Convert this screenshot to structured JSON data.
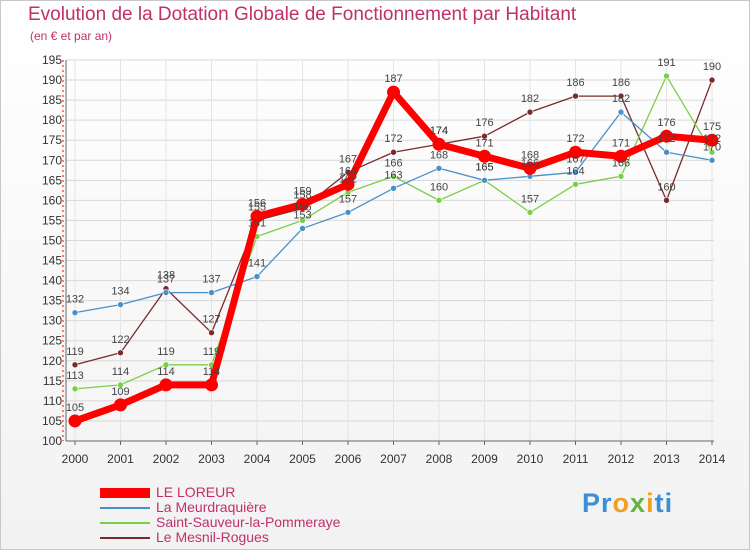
{
  "brand": {
    "logo_text": "Proxiti",
    "colors": {
      "accent": "#c0306a"
    }
  },
  "chart_data": {
    "type": "line",
    "title": "Evolution de la Dotation Globale de Fonctionnement par Habitant",
    "subtitle": "(en € et par an)",
    "xlabel": "",
    "ylabel": "",
    "ylim": [
      100,
      195
    ],
    "yticks": [
      100,
      105,
      110,
      115,
      120,
      125,
      130,
      135,
      140,
      145,
      150,
      155,
      160,
      165,
      170,
      175,
      180,
      185,
      190,
      195
    ],
    "categories": [
      "2000",
      "2001",
      "2002",
      "2003",
      "2004",
      "2005",
      "2006",
      "2007",
      "2008",
      "2009",
      "2010",
      "2011",
      "2012",
      "2013",
      "2014"
    ],
    "grid": true,
    "legend_position": "bottom-left",
    "series": [
      {
        "name": "LE LOREUR",
        "color": "#ff0000",
        "values": [
          105,
          109,
          114,
          114,
          156,
          159,
          164,
          187,
          174,
          171,
          168,
          172,
          171,
          176,
          175
        ]
      },
      {
        "name": "La Meurdraquière",
        "color": "#4a90c8",
        "values": [
          132,
          134,
          137,
          137,
          141,
          153,
          157,
          163,
          168,
          165,
          166,
          167,
          182,
          172,
          170
        ]
      },
      {
        "name": "Saint-Sauveur-la-Pommeraye",
        "color": "#7ccd4a",
        "values": [
          113,
          114,
          119,
          119,
          151,
          155,
          162,
          166,
          160,
          165,
          157,
          164,
          166,
          191,
          172
        ]
      },
      {
        "name": "Le Mesnil-Rogues",
        "color": "#7a2a2a",
        "values": [
          119,
          122,
          138,
          127,
          155,
          158,
          167,
          172,
          174,
          176,
          182,
          186,
          186,
          160,
          190
        ]
      }
    ]
  }
}
